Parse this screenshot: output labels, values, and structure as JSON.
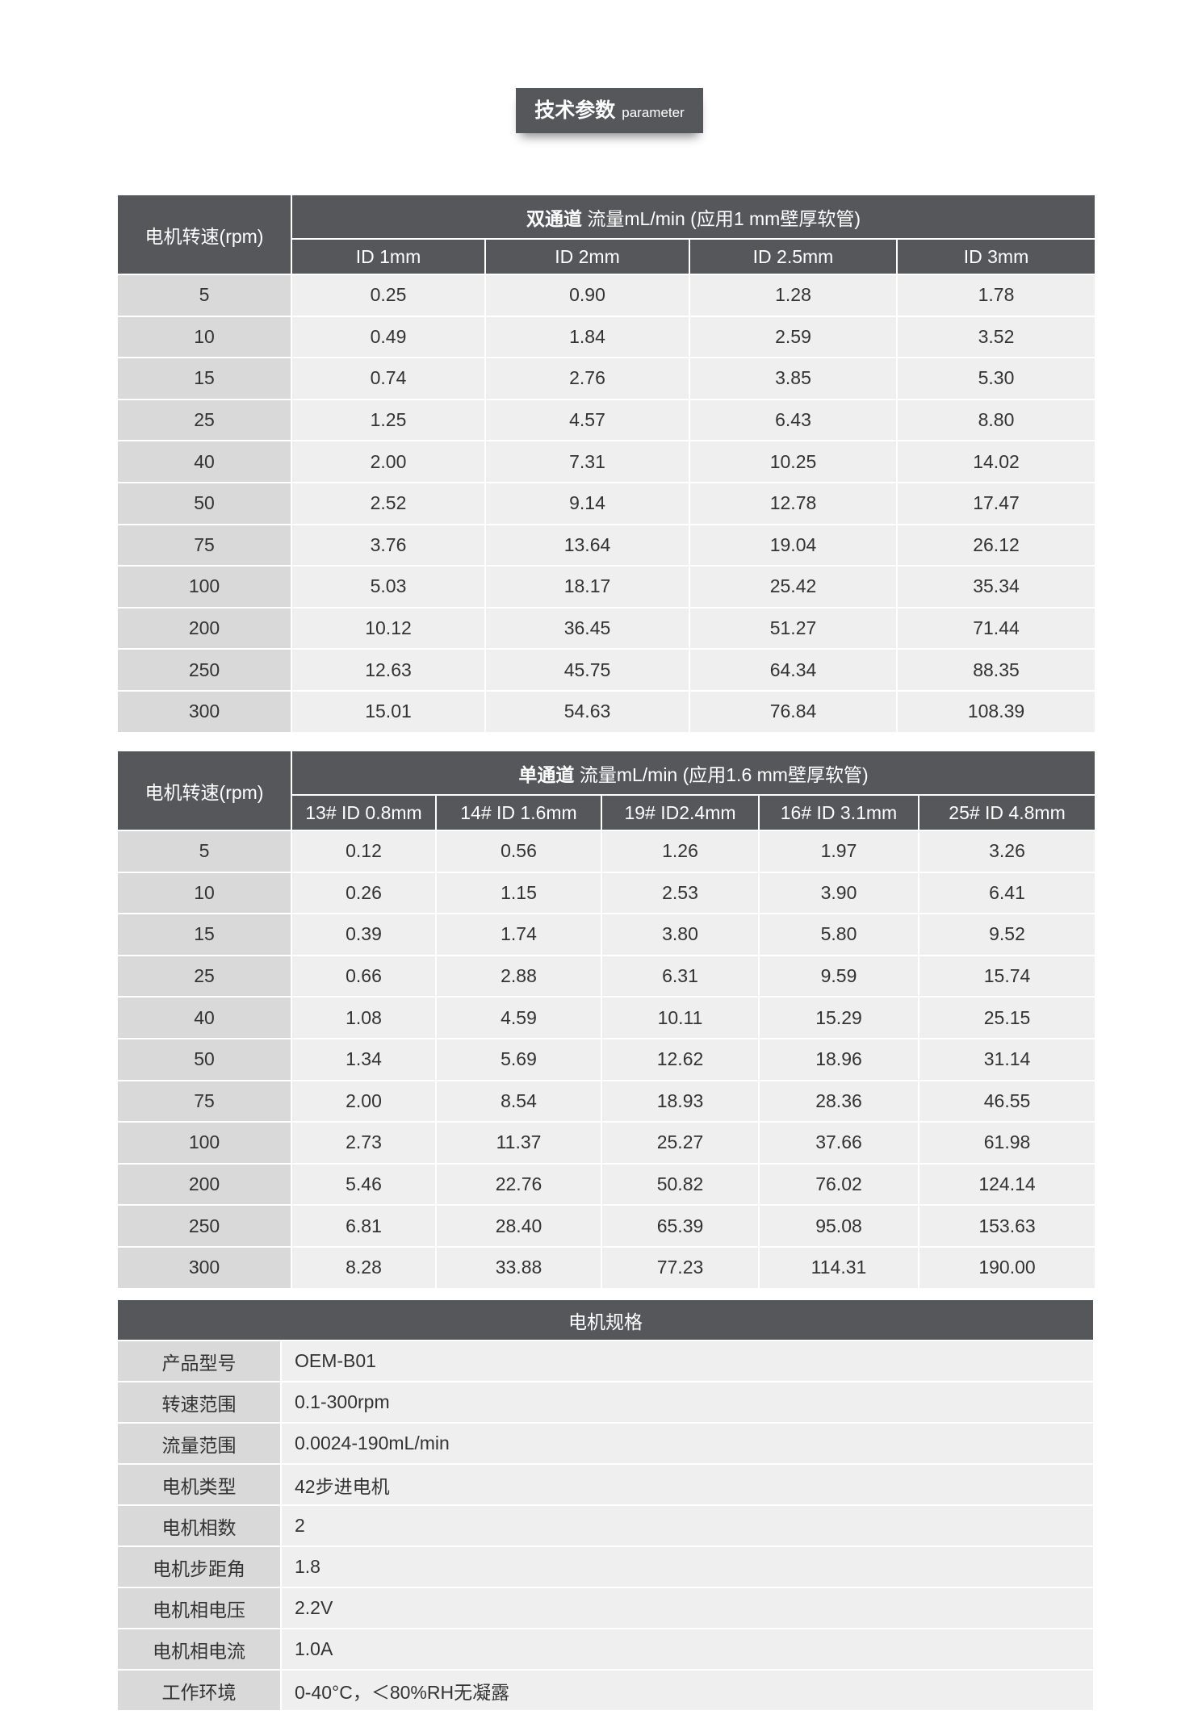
{
  "header": {
    "title": "技术参数",
    "subtitle": "parameter"
  },
  "table1": {
    "corner": "电机转速(rpm)",
    "group_bold": "双通道",
    "group": "流量mL/min (应用1 mm壁厚软管)",
    "columns": [
      "ID 1mm",
      "ID 2mm",
      "ID 2.5mm",
      "ID 3mm"
    ],
    "rows": [
      [
        "5",
        "0.25",
        "0.90",
        "1.28",
        "1.78"
      ],
      [
        "10",
        "0.49",
        "1.84",
        "2.59",
        "3.52"
      ],
      [
        "15",
        "0.74",
        "2.76",
        "3.85",
        "5.30"
      ],
      [
        "25",
        "1.25",
        "4.57",
        "6.43",
        "8.80"
      ],
      [
        "40",
        "2.00",
        "7.31",
        "10.25",
        "14.02"
      ],
      [
        "50",
        "2.52",
        "9.14",
        "12.78",
        "17.47"
      ],
      [
        "75",
        "3.76",
        "13.64",
        "19.04",
        "26.12"
      ],
      [
        "100",
        "5.03",
        "18.17",
        "25.42",
        "35.34"
      ],
      [
        "200",
        "10.12",
        "36.45",
        "51.27",
        "71.44"
      ],
      [
        "250",
        "12.63",
        "45.75",
        "64.34",
        "88.35"
      ],
      [
        "300",
        "15.01",
        "54.63",
        "76.84",
        "108.39"
      ]
    ]
  },
  "table2": {
    "corner": "电机转速(rpm)",
    "group_bold": "单通道",
    "group": "流量mL/min (应用1.6 mm壁厚软管)",
    "columns": [
      "13# ID 0.8mm",
      "14# ID 1.6mm",
      "19# ID2.4mm",
      "16# ID 3.1mm",
      "25# ID 4.8mm"
    ],
    "rows": [
      [
        "5",
        "0.12",
        "0.56",
        "1.26",
        "1.97",
        "3.26"
      ],
      [
        "10",
        "0.26",
        "1.15",
        "2.53",
        "3.90",
        "6.41"
      ],
      [
        "15",
        "0.39",
        "1.74",
        "3.80",
        "5.80",
        "9.52"
      ],
      [
        "25",
        "0.66",
        "2.88",
        "6.31",
        "9.59",
        "15.74"
      ],
      [
        "40",
        "1.08",
        "4.59",
        "10.11",
        "15.29",
        "25.15"
      ],
      [
        "50",
        "1.34",
        "5.69",
        "12.62",
        "18.96",
        "31.14"
      ],
      [
        "75",
        "2.00",
        "8.54",
        "18.93",
        "28.36",
        "46.55"
      ],
      [
        "100",
        "2.73",
        "11.37",
        "25.27",
        "37.66",
        "61.98"
      ],
      [
        "200",
        "5.46",
        "22.76",
        "50.82",
        "76.02",
        "124.14"
      ],
      [
        "250",
        "6.81",
        "28.40",
        "65.39",
        "95.08",
        "153.63"
      ],
      [
        "300",
        "8.28",
        "33.88",
        "77.23",
        "114.31",
        "190.00"
      ]
    ]
  },
  "table3": {
    "title": "电机规格",
    "rows": [
      [
        "产品型号",
        "OEM-B01"
      ],
      [
        "转速范围",
        "0.1-300rpm"
      ],
      [
        "流量范围",
        "0.0024-190mL/min"
      ],
      [
        "电机类型",
        "42步进电机"
      ],
      [
        "电机相数",
        "2"
      ],
      [
        "电机步距角",
        "1.8"
      ],
      [
        "电机相电压",
        "2.2V"
      ],
      [
        "电机相电流",
        "1.0A"
      ],
      [
        "工作环境",
        "0-40°C，＜80%RH无凝露"
      ]
    ]
  }
}
